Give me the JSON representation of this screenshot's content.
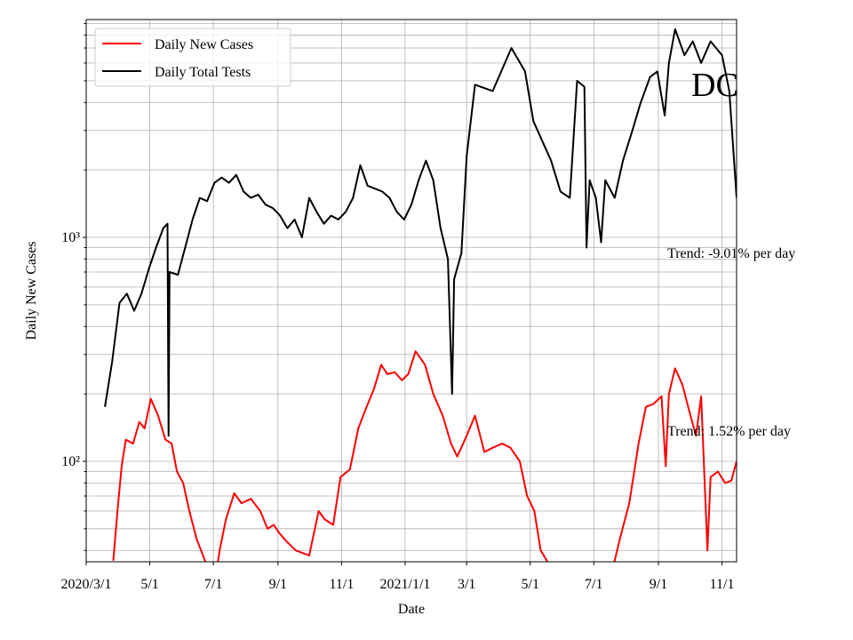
{
  "chart_data": {
    "type": "line",
    "xlabel": "Date",
    "ylabel": "Daily New Cases",
    "log_y": true,
    "grid": true,
    "minor_grid": true,
    "legend_loc": "upper left",
    "xlim": [
      "2020-03-01",
      "2021-11-15"
    ],
    "xticks": [
      {
        "value": "2020-03-01",
        "label": "2020/3/1"
      },
      {
        "value": "2020-05-01",
        "label": "5/1"
      },
      {
        "value": "2020-07-01",
        "label": "7/1"
      },
      {
        "value": "2020-09-01",
        "label": "9/1"
      },
      {
        "value": "2020-11-01",
        "label": "11/1"
      },
      {
        "value": "2021-01-01",
        "label": "2021/1/1"
      },
      {
        "value": "2021-03-01",
        "label": "3/1"
      },
      {
        "value": "2021-05-01",
        "label": "5/1"
      },
      {
        "value": "2021-07-01",
        "label": "7/1"
      },
      {
        "value": "2021-09-01",
        "label": "9/1"
      },
      {
        "value": "2021-11-01",
        "label": "11/1"
      }
    ],
    "ylim": [
      35.6,
      9380
    ],
    "yticks": [
      {
        "value": 100,
        "label": "10²"
      },
      {
        "value": 1000,
        "label": "10³"
      }
    ],
    "annotations": [
      {
        "text": "Trend: -9.01% per day"
      },
      {
        "text": "Trend: 1.52% per day"
      },
      {
        "text": "DC"
      }
    ],
    "series": [
      {
        "name": "Daily New Cases",
        "color": "#ff0000",
        "x": [
          "2020-03-27",
          "2020-03-31",
          "2020-04-04",
          "2020-04-08",
          "2020-04-15",
          "2020-04-21",
          "2020-04-26",
          "2020-05-02",
          "2020-05-09",
          "2020-05-16",
          "2020-05-22",
          "2020-05-27",
          "2020-06-02",
          "2020-06-08",
          "2020-06-15",
          "2020-06-23",
          "2020-06-28",
          "2020-07-03",
          "2020-07-07",
          "2020-07-13",
          "2020-07-21",
          "2020-07-28",
          "2020-08-06",
          "2020-08-15",
          "2020-08-22",
          "2020-08-28",
          "2020-09-02",
          "2020-09-09",
          "2020-09-18",
          "2020-10-01",
          "2020-10-10",
          "2020-10-16",
          "2020-10-24",
          "2020-10-31",
          "2020-11-09",
          "2020-11-17",
          "2020-11-25",
          "2020-12-02",
          "2020-12-09",
          "2020-12-15",
          "2020-12-22",
          "2020-12-29",
          "2021-01-04",
          "2021-01-11",
          "2021-01-20",
          "2021-01-28",
          "2021-02-06",
          "2021-02-14",
          "2021-02-20",
          "2021-03-01",
          "2021-03-09",
          "2021-03-18",
          "2021-03-26",
          "2021-04-04",
          "2021-04-12",
          "2021-04-21",
          "2021-04-28",
          "2021-05-05",
          "2021-05-11",
          "2021-05-17",
          "2021-05-25",
          "2021-06-20",
          "2021-07-15",
          "2021-07-21",
          "2021-07-26",
          "2021-08-04",
          "2021-08-13",
          "2021-08-20",
          "2021-08-27",
          "2021-09-04",
          "2021-09-08",
          "2021-09-11",
          "2021-09-17",
          "2021-09-24",
          "2021-10-01",
          "2021-10-07",
          "2021-10-12",
          "2021-10-18",
          "2021-10-21",
          "2021-10-28",
          "2021-11-04",
          "2021-11-10",
          "2021-11-15"
        ],
        "values": [
          36,
          60,
          95,
          125,
          120,
          150,
          140,
          190,
          160,
          125,
          120,
          90,
          80,
          60,
          45,
          36,
          30,
          30,
          40,
          55,
          72,
          65,
          68,
          60,
          50,
          52,
          48,
          44,
          40,
          38,
          60,
          55,
          52,
          85,
          92,
          140,
          175,
          210,
          270,
          245,
          250,
          230,
          245,
          310,
          270,
          200,
          160,
          120,
          105,
          130,
          160,
          110,
          115,
          120,
          115,
          100,
          70,
          60,
          40,
          36,
          30,
          30,
          30,
          36,
          45,
          65,
          120,
          175,
          180,
          195,
          95,
          200,
          260,
          220,
          165,
          130,
          195,
          40,
          85,
          90,
          80,
          82,
          100
        ]
      },
      {
        "name": "Daily Total Tests",
        "color": "#000000",
        "x": [
          "2020-03-19",
          "2020-03-26",
          "2020-04-02",
          "2020-04-09",
          "2020-04-16",
          "2020-04-23",
          "2020-04-30",
          "2020-05-07",
          "2020-05-14",
          "2020-05-18",
          "2020-05-19",
          "2020-05-20",
          "2020-05-28",
          "2020-06-04",
          "2020-06-11",
          "2020-06-18",
          "2020-06-25",
          "2020-07-02",
          "2020-07-09",
          "2020-07-16",
          "2020-07-23",
          "2020-07-30",
          "2020-08-06",
          "2020-08-13",
          "2020-08-20",
          "2020-08-27",
          "2020-09-03",
          "2020-09-10",
          "2020-09-17",
          "2020-09-24",
          "2020-10-01",
          "2020-10-08",
          "2020-10-15",
          "2020-10-22",
          "2020-10-29",
          "2020-11-05",
          "2020-11-12",
          "2020-11-19",
          "2020-11-26",
          "2020-12-03",
          "2020-12-10",
          "2020-12-17",
          "2020-12-24",
          "2020-12-31",
          "2021-01-07",
          "2021-01-14",
          "2021-01-21",
          "2021-01-28",
          "2021-02-04",
          "2021-02-11",
          "2021-02-15",
          "2021-02-17",
          "2021-02-24",
          "2021-03-01",
          "2021-03-09",
          "2021-03-26",
          "2021-04-13",
          "2021-04-26",
          "2021-05-04",
          "2021-05-21",
          "2021-05-30",
          "2021-06-08",
          "2021-06-15",
          "2021-06-22",
          "2021-06-24",
          "2021-06-27",
          "2021-07-03",
          "2021-07-08",
          "2021-07-12",
          "2021-07-21",
          "2021-07-29",
          "2021-08-07",
          "2021-08-15",
          "2021-08-24",
          "2021-08-31",
          "2021-09-07",
          "2021-09-11",
          "2021-09-17",
          "2021-09-26",
          "2021-10-04",
          "2021-10-12",
          "2021-10-21",
          "2021-11-01",
          "2021-11-08",
          "2021-11-15"
        ],
        "values": [
          175,
          280,
          510,
          560,
          470,
          560,
          720,
          900,
          1100,
          1150,
          130,
          700,
          680,
          900,
          1200,
          1500,
          1450,
          1750,
          1850,
          1750,
          1900,
          1600,
          1500,
          1550,
          1400,
          1350,
          1250,
          1100,
          1200,
          1000,
          1500,
          1300,
          1150,
          1250,
          1200,
          1300,
          1500,
          2100,
          1700,
          1650,
          1600,
          1500,
          1300,
          1200,
          1400,
          1800,
          2200,
          1800,
          1100,
          800,
          200,
          650,
          850,
          2300,
          4800,
          4500,
          7000,
          5500,
          3300,
          2200,
          1600,
          1500,
          5000,
          4700,
          900,
          1800,
          1500,
          950,
          1800,
          1500,
          2200,
          3000,
          4000,
          5200,
          5500,
          3500,
          6000,
          8500,
          6500,
          7500,
          6000,
          7500,
          6500,
          4500,
          1500
        ]
      }
    ]
  }
}
